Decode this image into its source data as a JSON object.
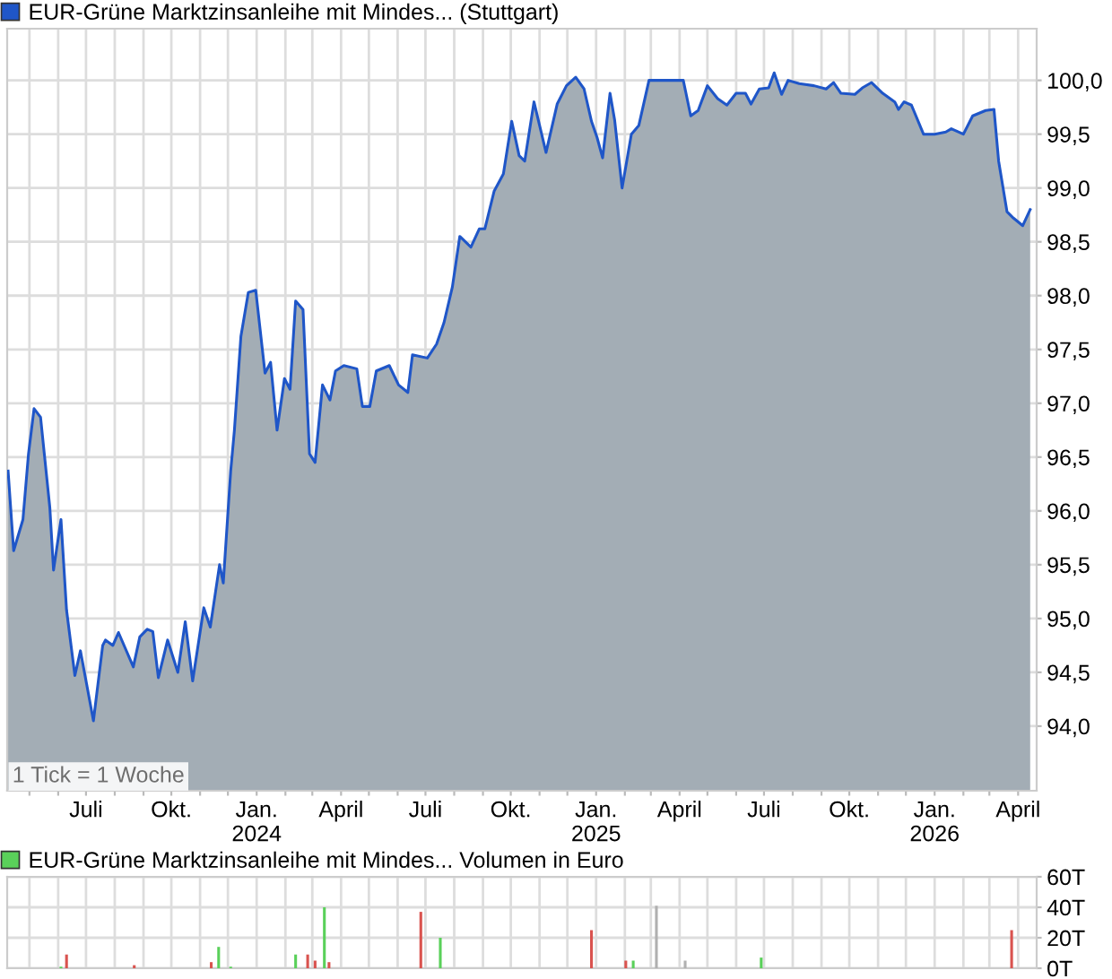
{
  "chart_data": [
    {
      "type": "area",
      "annotations": [
        "1 Tick = 1 Woche"
      ],
      "legend": "top left",
      "grid": true,
      "xlim": [
        "2023-04-07",
        "2026-04-21"
      ],
      "ylim": [
        93.4,
        100.48
      ],
      "yticks": [
        {
          "value": 94,
          "label": "94,0"
        },
        {
          "value": 94.5,
          "label": "94,5"
        },
        {
          "value": 95,
          "label": "95,0"
        },
        {
          "value": 95.5,
          "label": "95,5"
        },
        {
          "value": 96,
          "label": "96,0"
        },
        {
          "value": 96.5,
          "label": "96,5"
        },
        {
          "value": 97,
          "label": "97,0"
        },
        {
          "value": 97.5,
          "label": "97,5"
        },
        {
          "value": 98,
          "label": "98,0"
        },
        {
          "value": 98.5,
          "label": "98,5"
        },
        {
          "value": 99,
          "label": "99,0"
        },
        {
          "value": 99.5,
          "label": "99,5"
        },
        {
          "value": 100,
          "label": "100,0"
        }
      ],
      "xticks": [
        {
          "value": "2023-05-01",
          "label": null
        },
        {
          "value": "2023-06-01",
          "label": null
        },
        {
          "value": "2023-07-01",
          "label": "Juli"
        },
        {
          "value": "2023-08-01",
          "label": null
        },
        {
          "value": "2023-09-01",
          "label": null
        },
        {
          "value": "2023-10-01",
          "label": "Okt."
        },
        {
          "value": "2023-11-01",
          "label": null
        },
        {
          "value": "2023-12-01",
          "label": null
        },
        {
          "value": "2024-01-01",
          "label": "Jan.\n2024"
        },
        {
          "value": "2024-02-01",
          "label": null
        },
        {
          "value": "2024-03-01",
          "label": null
        },
        {
          "value": "2024-04-01",
          "label": "April"
        },
        {
          "value": "2024-05-01",
          "label": null
        },
        {
          "value": "2024-06-01",
          "label": null
        },
        {
          "value": "2024-07-01",
          "label": "Juli"
        },
        {
          "value": "2024-08-01",
          "label": null
        },
        {
          "value": "2024-09-01",
          "label": null
        },
        {
          "value": "2024-10-01",
          "label": "Okt."
        },
        {
          "value": "2024-11-01",
          "label": null
        },
        {
          "value": "2024-12-01",
          "label": null
        },
        {
          "value": "2025-01-01",
          "label": "Jan.\n2025"
        },
        {
          "value": "2025-02-01",
          "label": null
        },
        {
          "value": "2025-03-01",
          "label": null
        },
        {
          "value": "2025-04-01",
          "label": "April"
        },
        {
          "value": "2025-05-01",
          "label": null
        },
        {
          "value": "2025-06-01",
          "label": null
        },
        {
          "value": "2025-07-01",
          "label": "Juli"
        },
        {
          "value": "2025-08-01",
          "label": null
        },
        {
          "value": "2025-09-01",
          "label": null
        },
        {
          "value": "2025-10-01",
          "label": "Okt."
        },
        {
          "value": "2025-11-01",
          "label": null
        },
        {
          "value": "2025-12-01",
          "label": null
        },
        {
          "value": "2026-01-01",
          "label": "Jan.\n2026"
        },
        {
          "value": "2026-02-01",
          "label": null
        },
        {
          "value": "2026-03-01",
          "label": null
        },
        {
          "value": "2026-04-01",
          "label": "April"
        }
      ],
      "series": [
        {
          "name": "EUR-Grüne Marktzinsanleihe mit Mindes... (Stuttgart)",
          "color": "#1f56c8",
          "x": [
            "2023-04-08",
            "2023-04-14",
            "2023-04-24",
            "2023-04-30",
            "2023-05-06",
            "2023-05-13",
            "2023-05-23",
            "2023-05-27",
            "2023-06-04",
            "2023-06-10",
            "2023-06-19",
            "2023-06-25",
            "2023-07-09",
            "2023-07-19",
            "2023-07-22",
            "2023-07-30",
            "2023-08-05",
            "2023-08-21",
            "2023-08-28",
            "2023-09-05",
            "2023-09-11",
            "2023-09-17",
            "2023-09-27",
            "2023-10-08",
            "2023-10-16",
            "2023-10-24",
            "2023-11-05",
            "2023-11-12",
            "2023-11-22",
            "2023-11-26",
            "2023-12-04",
            "2023-12-08",
            "2023-12-15",
            "2023-12-23",
            "2023-12-31",
            "2024-01-10",
            "2024-01-16",
            "2024-01-23",
            "2024-01-31",
            "2024-02-06",
            "2024-02-12",
            "2024-02-20",
            "2024-02-27",
            "2024-03-04",
            "2024-03-12",
            "2024-03-20",
            "2024-03-26",
            "2024-04-04",
            "2024-04-18",
            "2024-04-24",
            "2024-05-02",
            "2024-05-09",
            "2024-05-23",
            "2024-06-02",
            "2024-06-12",
            "2024-06-17",
            "2024-07-03",
            "2024-07-13",
            "2024-07-21",
            "2024-07-30",
            "2024-08-07",
            "2024-08-19",
            "2024-08-28",
            "2024-09-03",
            "2024-09-13",
            "2024-09-23",
            "2024-10-02",
            "2024-10-10",
            "2024-10-16",
            "2024-10-26",
            "2024-11-08",
            "2024-11-20",
            "2024-11-30",
            "2024-12-10",
            "2024-12-19",
            "2024-12-27",
            "2025-01-02",
            "2025-01-08",
            "2025-01-16",
            "2025-01-21",
            "2025-01-29",
            "2025-02-08",
            "2025-02-16",
            "2025-02-27",
            "2025-04-05",
            "2025-04-13",
            "2025-04-21",
            "2025-05-01",
            "2025-05-12",
            "2025-05-22",
            "2025-06-01",
            "2025-06-11",
            "2025-06-17",
            "2025-06-26",
            "2025-07-06",
            "2025-07-12",
            "2025-07-20",
            "2025-07-27",
            "2025-08-08",
            "2025-08-24",
            "2025-09-06",
            "2025-09-14",
            "2025-09-22",
            "2025-10-07",
            "2025-10-15",
            "2025-10-25",
            "2025-11-06",
            "2025-11-19",
            "2025-11-23",
            "2025-11-29",
            "2025-12-07",
            "2025-12-20",
            "2026-01-01",
            "2026-01-13",
            "2026-01-19",
            "2026-02-01",
            "2026-02-11",
            "2026-02-25",
            "2026-03-06",
            "2026-03-11",
            "2026-03-20",
            "2026-03-27",
            "2026-04-06",
            "2026-04-14"
          ],
          "values": [
            96.37,
            95.63,
            95.92,
            96.53,
            96.95,
            96.87,
            96.03,
            95.45,
            95.92,
            95.08,
            94.47,
            94.7,
            94.05,
            94.75,
            94.8,
            94.75,
            94.87,
            94.55,
            94.83,
            94.9,
            94.88,
            94.45,
            94.8,
            94.5,
            94.97,
            94.42,
            95.1,
            94.92,
            95.5,
            95.33,
            96.37,
            96.75,
            97.62,
            98.03,
            98.05,
            97.28,
            97.38,
            96.75,
            97.23,
            97.13,
            97.95,
            97.87,
            96.53,
            96.45,
            97.17,
            97.03,
            97.3,
            97.35,
            97.32,
            96.97,
            96.97,
            97.3,
            97.35,
            97.17,
            97.1,
            97.45,
            97.42,
            97.55,
            97.75,
            98.08,
            98.55,
            98.45,
            98.62,
            98.62,
            98.97,
            99.13,
            99.62,
            99.3,
            99.25,
            99.8,
            99.33,
            99.78,
            99.95,
            100.03,
            99.92,
            99.62,
            99.47,
            99.28,
            99.88,
            99.63,
            99.0,
            99.5,
            99.58,
            100.0,
            100.0,
            99.67,
            99.72,
            99.95,
            99.83,
            99.77,
            99.88,
            99.88,
            99.78,
            99.92,
            99.93,
            100.07,
            99.87,
            100.0,
            99.97,
            99.95,
            99.92,
            99.98,
            99.88,
            99.87,
            99.93,
            99.98,
            99.88,
            99.8,
            99.73,
            99.8,
            99.77,
            99.5,
            99.5,
            99.52,
            99.55,
            99.5,
            99.67,
            99.72,
            99.73,
            99.25,
            98.78,
            98.72,
            98.65,
            98.8
          ]
        }
      ]
    },
    {
      "type": "bar",
      "legend": "top left",
      "grid": true,
      "tick_labels": "y",
      "xlim": [
        "2023-04-07",
        "2026-04-21"
      ],
      "ylim": [
        0,
        60
      ],
      "yticks": [
        {
          "value": 0,
          "label": "0T"
        },
        {
          "value": 20,
          "label": "20T"
        },
        {
          "value": 40,
          "label": "40T"
        },
        {
          "value": 60,
          "label": "60T"
        }
      ],
      "xticks": [
        {
          "value": "2023-05-01",
          "label": null
        },
        {
          "value": "2023-06-01",
          "label": null
        },
        {
          "value": "2023-07-01",
          "label": null
        },
        {
          "value": "2023-08-01",
          "label": null
        },
        {
          "value": "2023-09-01",
          "label": null
        },
        {
          "value": "2023-10-01",
          "label": null
        },
        {
          "value": "2023-11-01",
          "label": null
        },
        {
          "value": "2023-12-01",
          "label": null
        },
        {
          "value": "2024-01-01",
          "label": null
        },
        {
          "value": "2024-02-01",
          "label": null
        },
        {
          "value": "2024-03-01",
          "label": null
        },
        {
          "value": "2024-04-01",
          "label": null
        },
        {
          "value": "2024-05-01",
          "label": null
        },
        {
          "value": "2024-06-01",
          "label": null
        },
        {
          "value": "2024-07-01",
          "label": null
        },
        {
          "value": "2024-08-01",
          "label": null
        },
        {
          "value": "2024-09-01",
          "label": null
        },
        {
          "value": "2024-10-01",
          "label": null
        },
        {
          "value": "2024-11-01",
          "label": null
        },
        {
          "value": "2024-12-01",
          "label": null
        },
        {
          "value": "2025-01-01",
          "label": null
        },
        {
          "value": "2025-02-01",
          "label": null
        },
        {
          "value": "2025-03-01",
          "label": null
        },
        {
          "value": "2025-04-01",
          "label": null
        },
        {
          "value": "2025-05-01",
          "label": null
        },
        {
          "value": "2025-06-01",
          "label": null
        },
        {
          "value": "2025-07-01",
          "label": null
        },
        {
          "value": "2025-08-01",
          "label": null
        },
        {
          "value": "2025-09-01",
          "label": null
        },
        {
          "value": "2025-10-01",
          "label": null
        },
        {
          "value": "2025-11-01",
          "label": null
        },
        {
          "value": "2025-12-01",
          "label": null
        },
        {
          "value": "2026-01-01",
          "label": null
        },
        {
          "value": "2026-02-01",
          "label": null
        },
        {
          "value": "2026-03-01",
          "label": null
        },
        {
          "value": "2026-04-01",
          "label": null
        }
      ],
      "series": [
        {
          "name": "EUR-Grüne Marktzinsanleihe mit Mindes... Volumen in Euro",
          "color": "#5ad05a",
          "x": [
            "2023-06-04",
            "2023-06-10",
            "2023-08-22",
            "2023-11-13",
            "2023-11-21",
            "2023-12-04",
            "2024-02-12",
            "2024-02-25",
            "2024-03-04",
            "2024-03-14",
            "2024-03-19",
            "2024-06-26",
            "2024-07-17",
            "2024-12-27",
            "2025-02-02",
            "2025-02-10",
            "2025-03-07",
            "2025-04-07",
            "2025-06-28",
            "2026-03-25"
          ],
          "values": [
            1,
            9,
            2,
            4,
            14,
            1,
            9,
            9,
            5,
            40,
            4,
            37,
            20,
            25,
            5,
            5,
            41,
            5,
            7,
            25
          ],
          "colors": [
            "#5ad05a",
            "#d9534f",
            "#d9534f",
            "#d9534f",
            "#5ad05a",
            "#5ad05a",
            "#5ad05a",
            "#d9534f",
            "#d9534f",
            "#5ad05a",
            "#d9534f",
            "#d9534f",
            "#5ad05a",
            "#d9534f",
            "#d9534f",
            "#5ad05a",
            "#b0b0b0",
            "#b0b0b0",
            "#5ad05a",
            "#d9534f"
          ]
        }
      ]
    }
  ]
}
